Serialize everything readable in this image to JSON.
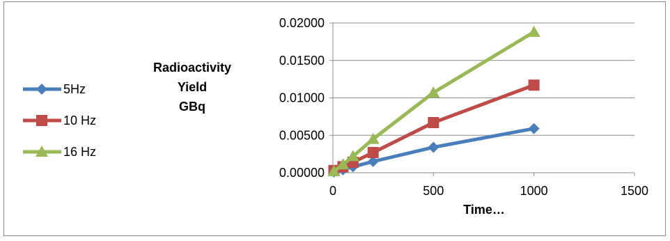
{
  "chart_data": {
    "type": "line",
    "title": "",
    "ylabel": [
      "Radioactivity",
      "Yield",
      "GBq"
    ],
    "xlabel": "Time…",
    "xlim": [
      0,
      1500
    ],
    "ylim": [
      0,
      0.02
    ],
    "x_ticks": [
      0,
      500,
      1000,
      1500
    ],
    "x_tick_labels": [
      "0",
      "500",
      "1000",
      "1500"
    ],
    "y_ticks": [
      0,
      0.005,
      0.01,
      0.015,
      0.02
    ],
    "y_tick_labels": [
      "0.00000",
      "0.00500",
      "0.01000",
      "0.01500",
      "0.02000"
    ],
    "grid": "horizontal",
    "legend_position": "left",
    "series": [
      {
        "name": "5Hz",
        "color": "#4a7ebb",
        "marker": "diamond",
        "x": [
          5,
          50,
          100,
          200,
          500,
          1000
        ],
        "y": [
          0.0001,
          0.0004,
          0.0008,
          0.0015,
          0.0034,
          0.0059
        ]
      },
      {
        "name": "10 Hz",
        "color": "#be4b48",
        "marker": "square",
        "x": [
          5,
          50,
          100,
          200,
          500,
          1000
        ],
        "y": [
          0.0003,
          0.0008,
          0.0014,
          0.0027,
          0.0067,
          0.0117
        ]
      },
      {
        "name": "16 Hz",
        "color": "#98b954",
        "marker": "triangle",
        "x": [
          5,
          50,
          100,
          200,
          500,
          1000
        ],
        "y": [
          0.0002,
          0.0011,
          0.0022,
          0.0045,
          0.0107,
          0.0188
        ]
      }
    ]
  }
}
